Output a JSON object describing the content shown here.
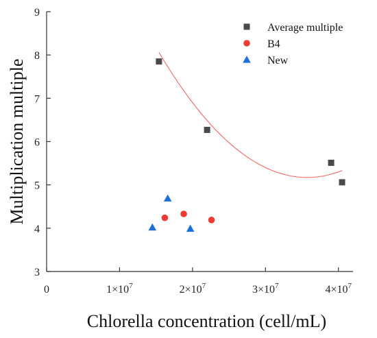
{
  "chart_data": {
    "type": "scatter",
    "title": "",
    "xlabel": "Chlorella concentration (cell/mL)",
    "ylabel": "Multiplication multiple",
    "xlim": [
      0,
      42000000
    ],
    "ylim": [
      3,
      9
    ],
    "grid": false,
    "legend_position": "top-right",
    "x_ticks": [
      {
        "value": 0,
        "label": "0"
      },
      {
        "value": 10000000,
        "label": "1×10",
        "exp": "7"
      },
      {
        "value": 20000000,
        "label": "2×10",
        "exp": "7"
      },
      {
        "value": 30000000,
        "label": "3×10",
        "exp": "7"
      },
      {
        "value": 40000000,
        "label": "4×10",
        "exp": "7"
      }
    ],
    "y_ticks": [
      {
        "value": 3,
        "label": "3"
      },
      {
        "value": 4,
        "label": "4"
      },
      {
        "value": 5,
        "label": "5"
      },
      {
        "value": 6,
        "label": "6"
      },
      {
        "value": 7,
        "label": "7"
      },
      {
        "value": 8,
        "label": "8"
      },
      {
        "value": 9,
        "label": "9"
      }
    ],
    "series": [
      {
        "name": "Average multiple",
        "marker": "square",
        "color": "#4a4a4a",
        "points": [
          {
            "x": 15400000,
            "y": 7.85
          },
          {
            "x": 22000000,
            "y": 6.27
          },
          {
            "x": 39000000,
            "y": 5.51
          },
          {
            "x": 40500000,
            "y": 5.06
          }
        ]
      },
      {
        "name": "B4",
        "marker": "circle",
        "color": "#ef3b36",
        "points": [
          {
            "x": 16200000,
            "y": 4.24
          },
          {
            "x": 18800000,
            "y": 4.33
          },
          {
            "x": 22600000,
            "y": 4.19
          }
        ]
      },
      {
        "name": "New",
        "marker": "triangle",
        "color": "#1e6fd9",
        "points": [
          {
            "x": 14500000,
            "y": 4.02
          },
          {
            "x": 16600000,
            "y": 4.69
          },
          {
            "x": 19700000,
            "y": 3.99
          }
        ]
      }
    ],
    "fit_curve": {
      "type": "quadratic",
      "color": "#ef6a62",
      "x_range": [
        15400000,
        40500000
      ],
      "coefficients": [
        14.1,
        -0.5,
        0.007
      ]
    }
  }
}
